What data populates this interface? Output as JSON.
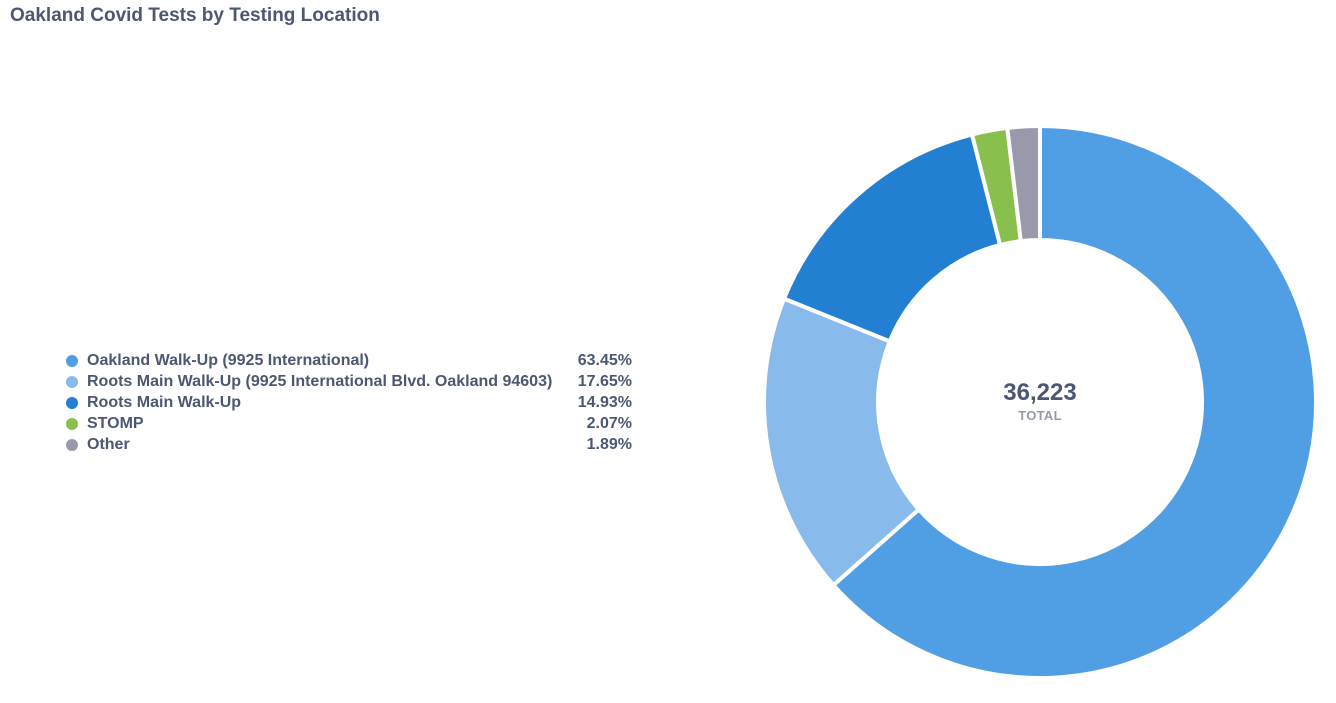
{
  "title": "Oakland Covid Tests by Testing Location",
  "chart_data": {
    "type": "pie",
    "title": "Oakland Covid Tests by Testing Location",
    "total": "36,223",
    "total_label": "TOTAL",
    "legend_position": "left",
    "slices": [
      {
        "label": "Oakland Walk-Up (9925 International)",
        "value": 63.45,
        "display": "63.45%",
        "color": "#509ee3"
      },
      {
        "label": "Roots Main Walk-Up (9925 International Blvd. Oakland 94603)",
        "value": 17.65,
        "display": "17.65%",
        "color": "#88bbeb"
      },
      {
        "label": "Roots Main Walk-Up",
        "value": 14.93,
        "display": "14.93%",
        "color": "#227fd2"
      },
      {
        "label": "STOMP",
        "value": 2.07,
        "display": "2.07%",
        "color": "#88bf4d"
      },
      {
        "label": "Other",
        "value": 1.89,
        "display": "1.89%",
        "color": "#989aab"
      }
    ]
  }
}
